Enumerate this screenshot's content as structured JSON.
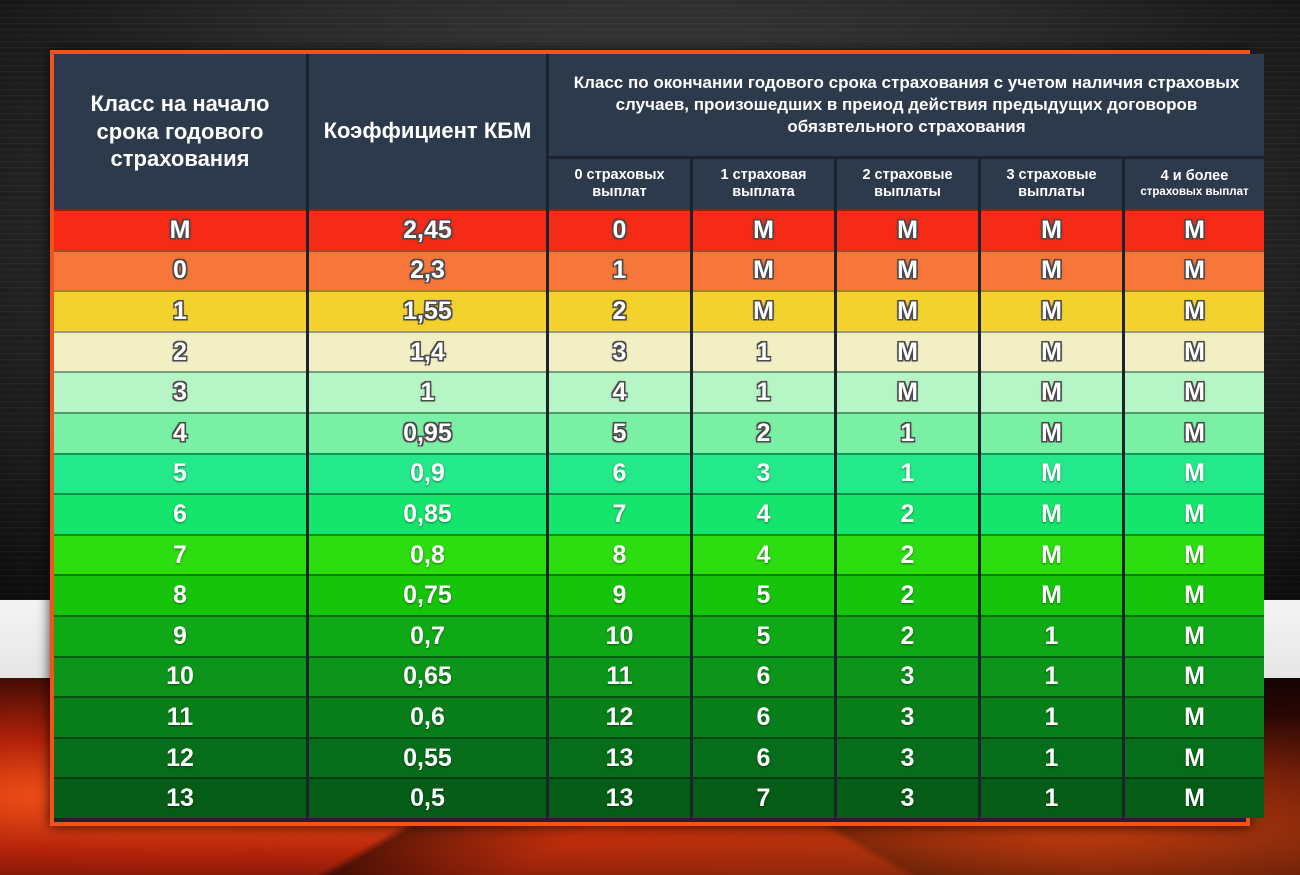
{
  "header": {
    "class_start": "Класс на начало срока годового страхования",
    "kbm": "Коэффициент КБМ",
    "class_end": "Класс по окончании годового срока страхования с учетом наличия страховых случаев, произошедших в преиод действия предыдущих договоров обязвтельного страхования",
    "sub": [
      {
        "line1": "0 страховых",
        "line2": "выплат"
      },
      {
        "line1": "1 страховая",
        "line2": "выплата"
      },
      {
        "line1": "2 страховые",
        "line2": "выплаты"
      },
      {
        "line1": "3 страховые",
        "line2": "выплаты"
      },
      {
        "line1": "4 и более",
        "line2": "страховых выплат"
      }
    ]
  },
  "rows": [
    {
      "cells": [
        "М",
        "2,45",
        "0",
        "М",
        "М",
        "М",
        "М"
      ],
      "color": "#f52a17",
      "light": true
    },
    {
      "cells": [
        "0",
        "2,3",
        "1",
        "М",
        "М",
        "М",
        "М"
      ],
      "color": "#f7763a",
      "light": true
    },
    {
      "cells": [
        "1",
        "1,55",
        "2",
        "М",
        "М",
        "М",
        "М"
      ],
      "color": "#f4d22e",
      "light": true
    },
    {
      "cells": [
        "2",
        "1,4",
        "3",
        "1",
        "М",
        "М",
        "М"
      ],
      "color": "#f2efc4",
      "light": true
    },
    {
      "cells": [
        "3",
        "1",
        "4",
        "1",
        "М",
        "М",
        "М"
      ],
      "color": "#b6f5c6",
      "light": true
    },
    {
      "cells": [
        "4",
        "0,95",
        "5",
        "2",
        "1",
        "М",
        "М"
      ],
      "color": "#7af0a4",
      "light": true
    },
    {
      "cells": [
        "5",
        "0,9",
        "6",
        "3",
        "1",
        "М",
        "М"
      ],
      "color": "#24e98a",
      "light": false
    },
    {
      "cells": [
        "6",
        "0,85",
        "7",
        "4",
        "2",
        "М",
        "М"
      ],
      "color": "#15e56c",
      "light": false
    },
    {
      "cells": [
        "7",
        "0,8",
        "8",
        "4",
        "2",
        "М",
        "М"
      ],
      "color": "#2cdd10",
      "light": false
    },
    {
      "cells": [
        "8",
        "0,75",
        "9",
        "5",
        "2",
        "М",
        "М"
      ],
      "color": "#17c40c",
      "light": false
    },
    {
      "cells": [
        "9",
        "0,7",
        "10",
        "5",
        "2",
        "1",
        "М"
      ],
      "color": "#0fa817",
      "light": false
    },
    {
      "cells": [
        "10",
        "0,65",
        "11",
        "6",
        "3",
        "1",
        "М"
      ],
      "color": "#0c941b",
      "light": false
    },
    {
      "cells": [
        "11",
        "0,6",
        "12",
        "6",
        "3",
        "1",
        "М"
      ],
      "color": "#087e1b",
      "light": false
    },
    {
      "cells": [
        "12",
        "0,55",
        "13",
        "6",
        "3",
        "1",
        "М"
      ],
      "color": "#066d1a",
      "light": false
    },
    {
      "cells": [
        "13",
        "0,5",
        "13",
        "7",
        "3",
        "1",
        "М"
      ],
      "color": "#045c17",
      "light": false
    }
  ]
}
